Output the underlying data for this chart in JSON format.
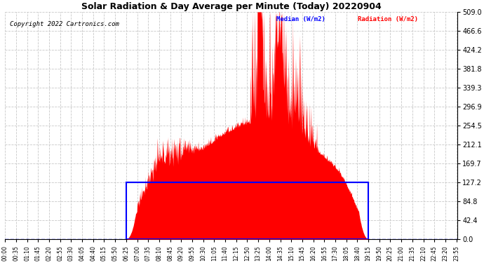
{
  "title": "Solar Radiation & Day Average per Minute (Today) 20220904",
  "copyright": "Copyright 2022 Cartronics.com",
  "legend_median": "Median (W/m2)",
  "legend_radiation": "Radiation (W/m2)",
  "ymax": 509.0,
  "yticks": [
    0.0,
    42.4,
    84.8,
    127.2,
    169.7,
    212.1,
    254.5,
    296.9,
    339.3,
    381.8,
    424.2,
    466.6,
    509.0
  ],
  "median_value": 127.2,
  "background_color": "#ffffff",
  "radiation_color": "#ff0000",
  "median_color": "#0000ff",
  "grid_color": "#c8c8c8",
  "title_color": "#000000",
  "sunrise_min": 385,
  "sunset_min": 1155,
  "peak_min": 805,
  "peak_val": 509.0,
  "x_tick_step": 35,
  "total_minutes": 1440
}
